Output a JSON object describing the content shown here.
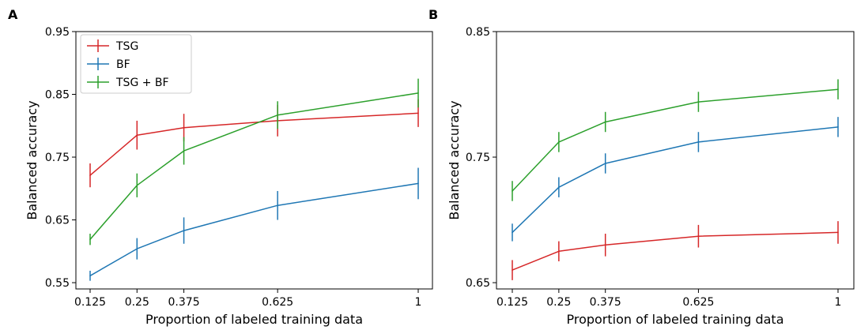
{
  "chart_data": [
    {
      "panel_label": "A",
      "type": "line",
      "xlabel": "Proportion of labeled training data",
      "ylabel": "Balanced accuracy",
      "x": [
        0.125,
        0.25,
        0.375,
        0.625,
        1
      ],
      "x_tick_labels": [
        "0.125",
        "0.25",
        "0.375",
        "0.625",
        "1"
      ],
      "ylim": [
        0.54,
        0.95
      ],
      "y_ticks": [
        0.55,
        0.65,
        0.75,
        0.85,
        0.95
      ],
      "y_tick_labels": [
        "0.55",
        "0.65",
        "0.75",
        "0.85",
        "0.95"
      ],
      "legend": "top-left",
      "series": [
        {
          "name": "TSG",
          "color": "#d62728",
          "values": [
            0.721,
            0.785,
            0.797,
            0.808,
            0.82
          ],
          "errors": [
            0.019,
            0.023,
            0.022,
            0.025,
            0.022
          ]
        },
        {
          "name": "BF",
          "color": "#1f77b4",
          "values": [
            0.561,
            0.604,
            0.633,
            0.673,
            0.708
          ],
          "errors": [
            0.008,
            0.017,
            0.021,
            0.023,
            0.025
          ]
        },
        {
          "name": "TSG + BF",
          "color": "#2ca02c",
          "values": [
            0.619,
            0.705,
            0.76,
            0.817,
            0.852
          ],
          "errors": [
            0.009,
            0.019,
            0.022,
            0.022,
            0.023
          ]
        }
      ]
    },
    {
      "panel_label": "B",
      "type": "line",
      "xlabel": "Proportion of labeled training data",
      "ylabel": "Balanced accuracy",
      "x": [
        0.125,
        0.25,
        0.375,
        0.625,
        1
      ],
      "x_tick_labels": [
        "0.125",
        "0.25",
        "0.375",
        "0.625",
        "1"
      ],
      "ylim": [
        0.645,
        0.85
      ],
      "y_ticks": [
        0.65,
        0.75,
        0.85
      ],
      "y_tick_labels": [
        "0.65",
        "0.75",
        "0.85"
      ],
      "legend": "none",
      "series": [
        {
          "name": "TSG",
          "color": "#d62728",
          "values": [
            0.66,
            0.675,
            0.68,
            0.687,
            0.69
          ],
          "errors": [
            0.008,
            0.008,
            0.009,
            0.009,
            0.009
          ]
        },
        {
          "name": "BF",
          "color": "#1f77b4",
          "values": [
            0.69,
            0.726,
            0.745,
            0.762,
            0.774
          ],
          "errors": [
            0.007,
            0.008,
            0.008,
            0.008,
            0.008
          ]
        },
        {
          "name": "TSG + BF",
          "color": "#2ca02c",
          "values": [
            0.723,
            0.762,
            0.778,
            0.794,
            0.804
          ],
          "errors": [
            0.008,
            0.008,
            0.008,
            0.008,
            0.008
          ]
        }
      ]
    }
  ]
}
